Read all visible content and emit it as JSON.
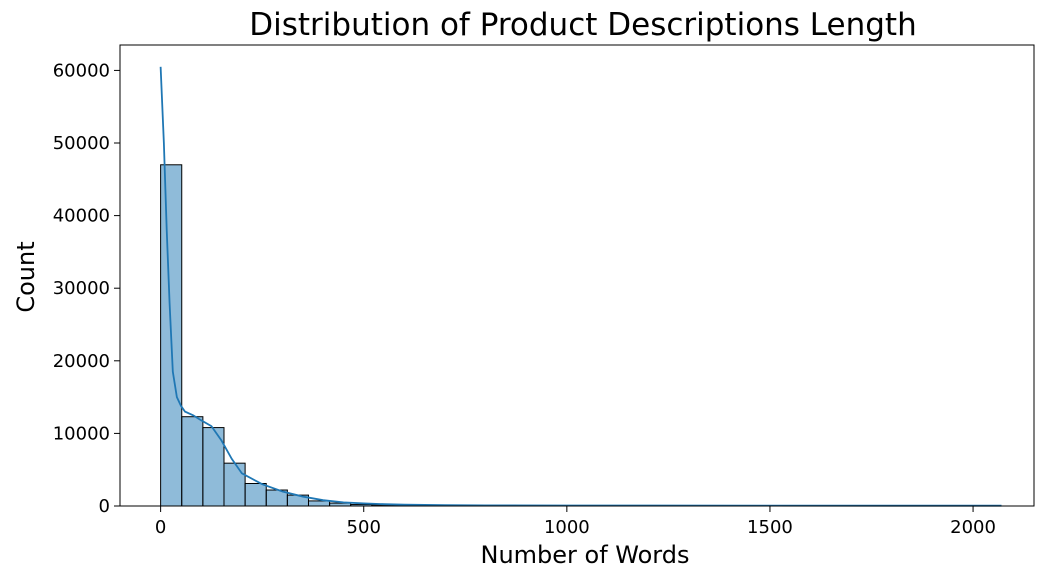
{
  "chart_data": {
    "type": "bar",
    "title": "Distribution of Product Descriptions Length",
    "xlabel": "Number of Words",
    "ylabel": "Count",
    "xlim": [
      -100,
      2150
    ],
    "ylim": [
      0,
      63500
    ],
    "xticks": [
      0,
      500,
      1000,
      1500,
      2000
    ],
    "yticks": [
      0,
      10000,
      20000,
      30000,
      40000,
      50000,
      60000
    ],
    "grid": false,
    "histogram": {
      "bin_width": 52,
      "bin_edges": [
        0,
        52,
        104,
        156,
        208,
        260,
        312,
        364,
        416,
        468,
        520,
        572,
        624
      ],
      "counts": [
        47000,
        12300,
        10800,
        5900,
        3100,
        2200,
        1500,
        700,
        400,
        200,
        150,
        60
      ]
    },
    "kde": {
      "x": [
        0,
        8,
        15,
        22,
        30,
        40,
        50,
        60,
        80,
        100,
        125,
        150,
        175,
        200,
        250,
        300,
        350,
        400,
        450,
        500,
        550,
        600,
        700,
        800,
        1000,
        1200,
        1500,
        1800,
        2070
      ],
      "y": [
        60500,
        50000,
        38000,
        28000,
        18500,
        15000,
        13800,
        13000,
        12500,
        11800,
        11000,
        9000,
        6500,
        4500,
        3000,
        2000,
        1300,
        800,
        500,
        350,
        250,
        180,
        120,
        90,
        70,
        60,
        50,
        45,
        40
      ]
    }
  }
}
